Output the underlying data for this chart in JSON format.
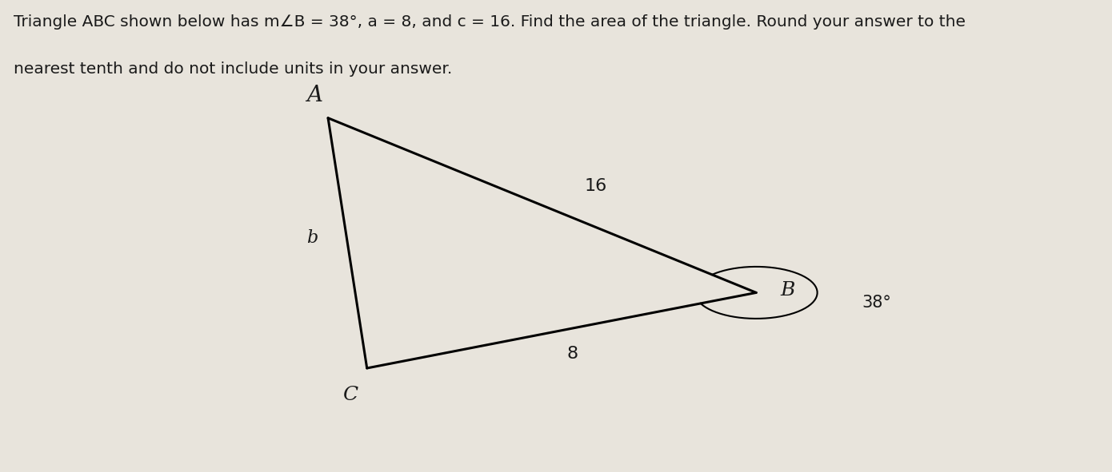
{
  "title_line1": "Triangle ABC shown below has m∠B = 38°, a = 8, and c = 16. Find the area of the triangle. Round your answer to the",
  "title_line2": "nearest tenth and do not include units in your answer.",
  "bg_color": "#e8e4dc",
  "text_color": "#1a1a1a",
  "vertex_A": [
    0.295,
    0.75
  ],
  "vertex_B": [
    0.68,
    0.38
  ],
  "vertex_C": [
    0.33,
    0.22
  ],
  "label_A": "A",
  "label_B": "B",
  "label_C": "C",
  "label_side_c": "16",
  "label_side_a": "8",
  "label_side_b": "b",
  "angle_label": "38°",
  "font_size_text": 14.5,
  "font_size_labels": 18,
  "font_size_side_labels": 16
}
